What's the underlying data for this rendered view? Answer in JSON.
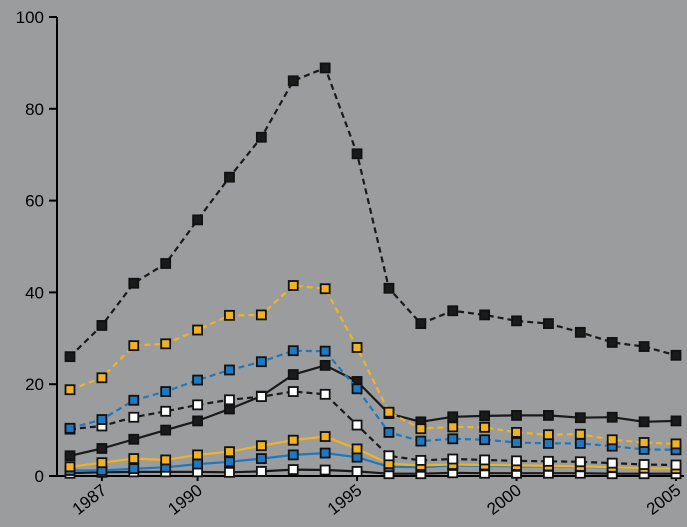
{
  "chart_data": {
    "type": "line",
    "title": "",
    "xlabel": "",
    "ylabel": "",
    "x": [
      1986,
      1987,
      1988,
      1989,
      1990,
      1991,
      1992,
      1993,
      1994,
      1995,
      1996,
      1997,
      1998,
      1999,
      2000,
      2001,
      2002,
      2003,
      2004,
      2005
    ],
    "xlim": [
      1986,
      2005
    ],
    "ylim": [
      0,
      100
    ],
    "xticks": [
      1987,
      1990,
      1995,
      2000,
      2005
    ],
    "yticks": [
      0,
      20,
      40,
      60,
      80,
      100
    ],
    "grid": false,
    "legend": "none",
    "series": [
      {
        "style": "dashed",
        "color": "#1a1a1a",
        "marker_fill": "#1a1a1a",
        "values": [
          26,
          32.8,
          42,
          46.3,
          55.8,
          65.1,
          73.8,
          86.1,
          88.9,
          70.2,
          40.9,
          33.2,
          36,
          35.1,
          33.8,
          33.2,
          31.3,
          29.1,
          28.2,
          26.3
        ]
      },
      {
        "style": "dashed",
        "color": "#f0b323",
        "marker_fill": "#f0b323",
        "values": [
          18.8,
          21.4,
          28.4,
          28.8,
          31.8,
          35,
          35.1,
          41.5,
          40.8,
          28,
          13.9,
          10.3,
          10.7,
          10.6,
          9.5,
          9,
          9.1,
          7.9,
          7.3,
          7
        ]
      },
      {
        "style": "dashed",
        "color": "#1f78c1",
        "marker_fill": "#1f78c1",
        "values": [
          10.4,
          12.3,
          16.5,
          18.4,
          20.9,
          23.1,
          24.9,
          27.3,
          27.2,
          19,
          9.5,
          7.6,
          8.1,
          7.9,
          7.3,
          7.1,
          7.1,
          6.5,
          5.8,
          5.7
        ]
      },
      {
        "style": "dashed",
        "color": "#1a1a1a",
        "marker_fill": "#ffffff",
        "values": [
          10.2,
          10.9,
          12.8,
          14.1,
          15.5,
          16.6,
          17.3,
          18.4,
          17.8,
          11.1,
          4.4,
          3.4,
          3.7,
          3.5,
          3.3,
          3.2,
          3.1,
          2.8,
          2.5,
          2.4
        ]
      },
      {
        "style": "solid",
        "color": "#1a1a1a",
        "marker_fill": "#1a1a1a",
        "values": [
          4.4,
          6,
          8,
          10,
          12,
          14.6,
          17.4,
          22.1,
          24.1,
          20.6,
          13.6,
          11.8,
          12.9,
          13.1,
          13.2,
          13.2,
          12.7,
          12.8,
          11.8,
          12
        ]
      },
      {
        "style": "solid",
        "color": "#f0b323",
        "marker_fill": "#f0b323",
        "values": [
          2,
          2.9,
          3.8,
          3.5,
          4.6,
          5.3,
          6.6,
          7.8,
          8.6,
          5.9,
          2.7,
          2.3,
          2.5,
          2.4,
          2.3,
          2.2,
          2.1,
          1.9,
          1.7,
          1.6
        ]
      },
      {
        "style": "solid",
        "color": "#1f78c1",
        "marker_fill": "#1f78c1",
        "values": [
          1.2,
          1.2,
          1.6,
          1.9,
          2.6,
          3.1,
          3.8,
          4.6,
          5,
          4.1,
          2,
          1.9,
          2.3,
          2.2,
          2.1,
          2.1,
          2,
          1.8,
          1.7,
          1.6
        ]
      },
      {
        "style": "solid",
        "color": "#1a1a1a",
        "marker_fill": "#ffffff",
        "values": [
          0.6,
          0.8,
          0.9,
          0.9,
          0.9,
          0.8,
          1,
          1.4,
          1.3,
          1,
          0.5,
          0.5,
          0.7,
          0.6,
          0.6,
          0.6,
          0.6,
          0.5,
          0.5,
          0.5
        ]
      }
    ]
  }
}
